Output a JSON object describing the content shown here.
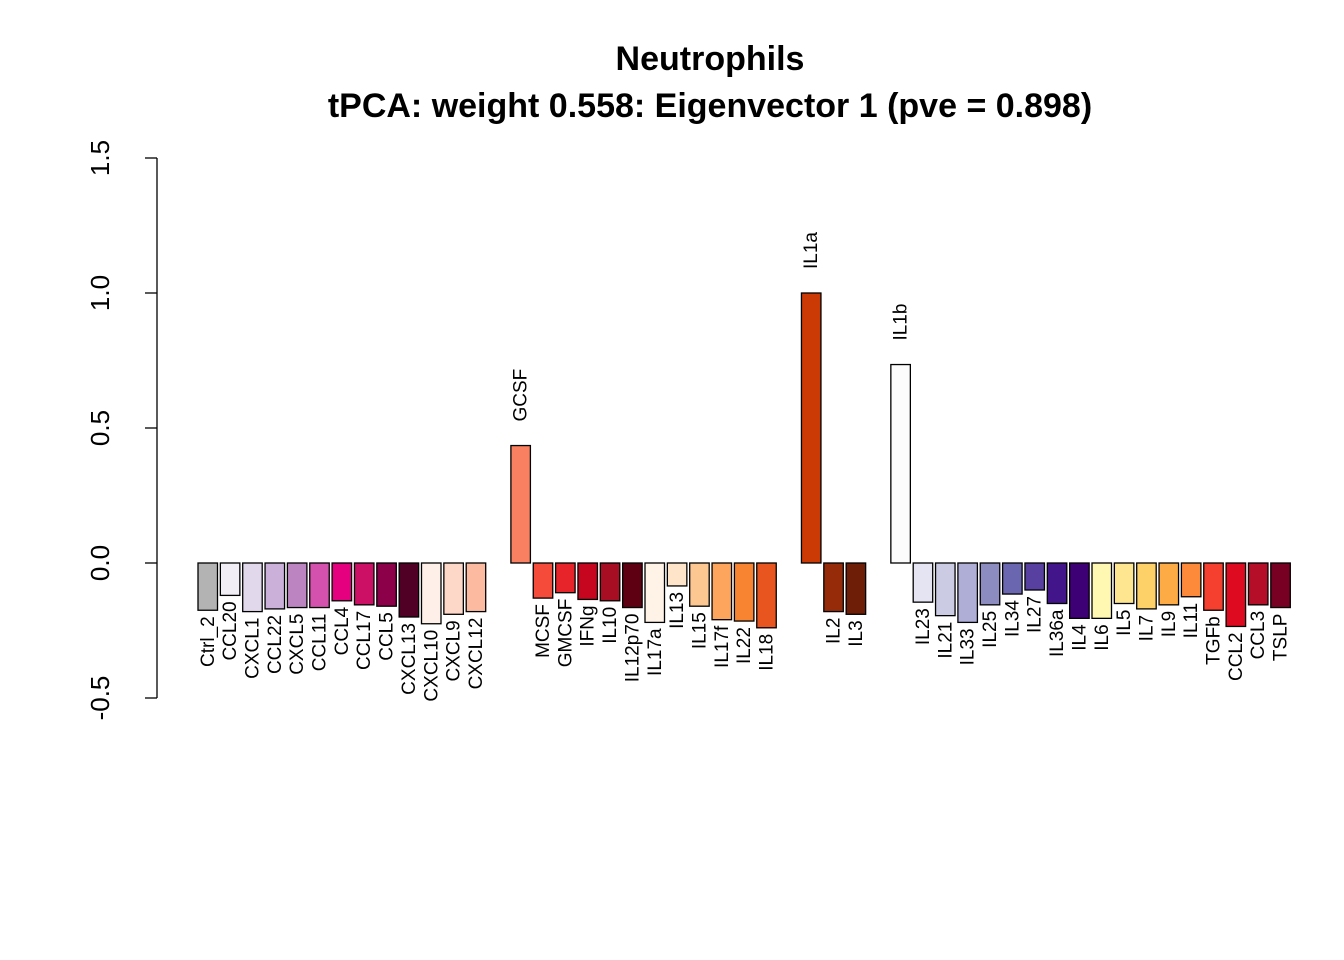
{
  "chart_data": {
    "type": "bar",
    "title": "Neutrophils",
    "subtitle": "tPCA: weight 0.558: Eigenvector 1 (pve = 0.898)",
    "xlabel": "",
    "ylabel": "",
    "ylim": [
      -0.5,
      1.5
    ],
    "yticks": [
      "-0.5",
      "0.0",
      "0.5",
      "1.0",
      "1.5"
    ],
    "grid": false,
    "legend": "none",
    "groups": [
      [
        {
          "name": "Ctrl_2",
          "value": -0.175,
          "color": "#B3B3B3"
        },
        {
          "name": "CCL20",
          "value": -0.12,
          "color": "#F2EEF6"
        },
        {
          "name": "CXCL1",
          "value": -0.18,
          "color": "#E1D8EC"
        },
        {
          "name": "CCL22",
          "value": -0.17,
          "color": "#CBB1DA"
        },
        {
          "name": "CXCL5",
          "value": -0.165,
          "color": "#BC85C2"
        },
        {
          "name": "CCL11",
          "value": -0.165,
          "color": "#D452AE"
        },
        {
          "name": "CCL4",
          "value": -0.14,
          "color": "#E4007F"
        },
        {
          "name": "CCL17",
          "value": -0.155,
          "color": "#CB1066"
        },
        {
          "name": "CCL5",
          "value": -0.16,
          "color": "#8B0048"
        },
        {
          "name": "CXCL13",
          "value": -0.2,
          "color": "#4F0024"
        },
        {
          "name": "CXCL10",
          "value": -0.225,
          "color": "#FEF0E8"
        },
        {
          "name": "CXCL9",
          "value": -0.19,
          "color": "#FDD8C8"
        },
        {
          "name": "CXCL12",
          "value": -0.18,
          "color": "#FCBBA1"
        }
      ],
      [
        {
          "name": "GCSF",
          "value": 0.435,
          "color": "#F98060",
          "label_top": "GCSF"
        },
        {
          "name": "MCSF",
          "value": -0.13,
          "color": "#F54B3A"
        },
        {
          "name": "GMCSF",
          "value": -0.11,
          "color": "#E7242A"
        },
        {
          "name": "IFNg",
          "value": -0.135,
          "color": "#C5061E"
        },
        {
          "name": "IL10",
          "value": -0.14,
          "color": "#A70D23"
        },
        {
          "name": "IL12p70",
          "value": -0.165,
          "color": "#5E0011"
        },
        {
          "name": "IL17a",
          "value": -0.22,
          "color": "#FFF3E8"
        },
        {
          "name": "IL13",
          "value": -0.085,
          "color": "#FEE4C8"
        },
        {
          "name": "IL15",
          "value": -0.16,
          "color": "#FDC792"
        },
        {
          "name": "IL17f",
          "value": -0.21,
          "color": "#FDA55C"
        },
        {
          "name": "IL22",
          "value": -0.215,
          "color": "#F88331"
        },
        {
          "name": "IL18",
          "value": -0.24,
          "color": "#E8551E"
        }
      ],
      [
        {
          "name": "IL1a",
          "value": 1.0,
          "color": "#CB3A04",
          "label_top": "IL1a"
        },
        {
          "name": "IL2",
          "value": -0.18,
          "color": "#962B0A"
        },
        {
          "name": "IL3",
          "value": -0.19,
          "color": "#6E1D07"
        }
      ],
      [
        {
          "name": "IL1b",
          "value": 0.735,
          "color": "#FCFCFC",
          "label_top": "IL1b"
        },
        {
          "name": "IL23",
          "value": -0.145,
          "color": "#E5E4F2"
        },
        {
          "name": "IL21",
          "value": -0.195,
          "color": "#CBCCE4"
        },
        {
          "name": "IL33",
          "value": -0.22,
          "color": "#AFAED7"
        },
        {
          "name": "IL25",
          "value": -0.155,
          "color": "#8D8CC1"
        },
        {
          "name": "IL34",
          "value": -0.115,
          "color": "#6A66AF"
        },
        {
          "name": "IL27",
          "value": -0.1,
          "color": "#5740A0"
        },
        {
          "name": "IL36a",
          "value": -0.15,
          "color": "#43158A"
        },
        {
          "name": "IL4",
          "value": -0.205,
          "color": "#3E0075"
        },
        {
          "name": "IL6",
          "value": -0.205,
          "color": "#FFF8B2"
        },
        {
          "name": "IL5",
          "value": -0.15,
          "color": "#FEE691"
        },
        {
          "name": "IL7",
          "value": -0.17,
          "color": "#FED168"
        },
        {
          "name": "IL9",
          "value": -0.155,
          "color": "#FDAC45"
        },
        {
          "name": "IL11",
          "value": -0.125,
          "color": "#FC8A3A"
        },
        {
          "name": "TGFb",
          "value": -0.175,
          "color": "#F54030"
        },
        {
          "name": "CCL2",
          "value": -0.235,
          "color": "#DE0A1F"
        },
        {
          "name": "CCL3",
          "value": -0.155,
          "color": "#B50E28"
        },
        {
          "name": "TSLP",
          "value": -0.165,
          "color": "#780022"
        }
      ]
    ]
  }
}
